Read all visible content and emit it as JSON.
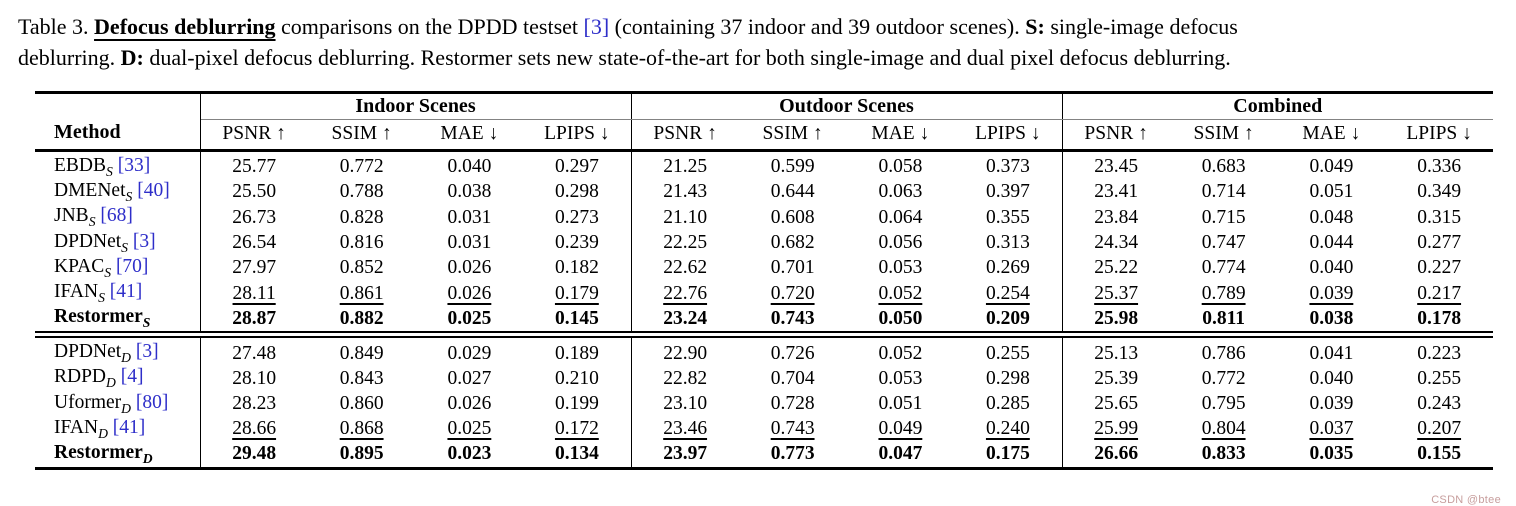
{
  "caption": {
    "part1": "Table 3. ",
    "defocus_label": "Defocus deblurring",
    "part2": " comparisons on the DPDD testset ",
    "cite": "[3]",
    "part3": " (containing 37 indoor and 39 outdoor scenes). ",
    "s_label": "S:",
    "part4": " single-image defocus",
    "part5": "deblurring. ",
    "d_label": "D:",
    "part6": " dual-pixel defocus deblurring. Restormer sets new state-of-the-art for both single-image and dual pixel defocus deblurring."
  },
  "table": {
    "method_header": "Method",
    "groups": [
      "Indoor Scenes",
      "Outdoor Scenes",
      "Combined"
    ],
    "metrics": [
      {
        "name": "PSNR",
        "arrow": "↑"
      },
      {
        "name": "SSIM",
        "arrow": "↑"
      },
      {
        "name": "MAE",
        "arrow": "↓"
      },
      {
        "name": "LPIPS",
        "arrow": "↓"
      }
    ],
    "sections": [
      {
        "suffix": "S",
        "rows": [
          {
            "method": "EBDB",
            "cite": "[33]",
            "style": "normal",
            "values": [
              "25.77",
              "0.772",
              "0.040",
              "0.297",
              "21.25",
              "0.599",
              "0.058",
              "0.373",
              "23.45",
              "0.683",
              "0.049",
              "0.336"
            ]
          },
          {
            "method": "DMENet",
            "cite": "[40]",
            "style": "normal",
            "values": [
              "25.50",
              "0.788",
              "0.038",
              "0.298",
              "21.43",
              "0.644",
              "0.063",
              "0.397",
              "23.41",
              "0.714",
              "0.051",
              "0.349"
            ]
          },
          {
            "method": "JNB",
            "cite": "[68]",
            "style": "normal",
            "values": [
              "26.73",
              "0.828",
              "0.031",
              "0.273",
              "21.10",
              "0.608",
              "0.064",
              "0.355",
              "23.84",
              "0.715",
              "0.048",
              "0.315"
            ]
          },
          {
            "method": "DPDNet",
            "cite": "[3]",
            "style": "normal",
            "values": [
              "26.54",
              "0.816",
              "0.031",
              "0.239",
              "22.25",
              "0.682",
              "0.056",
              "0.313",
              "24.34",
              "0.747",
              "0.044",
              "0.277"
            ]
          },
          {
            "method": "KPAC",
            "cite": "[70]",
            "style": "normal",
            "values": [
              "27.97",
              "0.852",
              "0.026",
              "0.182",
              "22.62",
              "0.701",
              "0.053",
              "0.269",
              "25.22",
              "0.774",
              "0.040",
              "0.227"
            ]
          },
          {
            "method": "IFAN",
            "cite": "[41]",
            "style": "underline",
            "values": [
              "28.11",
              "0.861",
              "0.026",
              "0.179",
              "22.76",
              "0.720",
              "0.052",
              "0.254",
              "25.37",
              "0.789",
              "0.039",
              "0.217"
            ]
          },
          {
            "method": "Restormer",
            "cite": "",
            "style": "bold",
            "values": [
              "28.87",
              "0.882",
              "0.025",
              "0.145",
              "23.24",
              "0.743",
              "0.050",
              "0.209",
              "25.98",
              "0.811",
              "0.038",
              "0.178"
            ]
          }
        ]
      },
      {
        "suffix": "D",
        "rows": [
          {
            "method": "DPDNet",
            "cite": "[3]",
            "style": "normal",
            "values": [
              "27.48",
              "0.849",
              "0.029",
              "0.189",
              "22.90",
              "0.726",
              "0.052",
              "0.255",
              "25.13",
              "0.786",
              "0.041",
              "0.223"
            ]
          },
          {
            "method": "RDPD",
            "cite": "[4]",
            "style": "normal",
            "values": [
              "28.10",
              "0.843",
              "0.027",
              "0.210",
              "22.82",
              "0.704",
              "0.053",
              "0.298",
              "25.39",
              "0.772",
              "0.040",
              "0.255"
            ]
          },
          {
            "method": "Uformer",
            "cite": "[80]",
            "style": "normal",
            "values": [
              "28.23",
              "0.860",
              "0.026",
              "0.199",
              "23.10",
              "0.728",
              "0.051",
              "0.285",
              "25.65",
              "0.795",
              "0.039",
              "0.243"
            ]
          },
          {
            "method": "IFAN",
            "cite": "[41]",
            "style": "underline",
            "values": [
              "28.66",
              "0.868",
              "0.025",
              "0.172",
              "23.46",
              "0.743",
              "0.049",
              "0.240",
              "25.99",
              "0.804",
              "0.037",
              "0.207"
            ]
          },
          {
            "method": "Restormer",
            "cite": "",
            "style": "bold",
            "values": [
              "29.48",
              "0.895",
              "0.023",
              "0.134",
              "23.97",
              "0.773",
              "0.047",
              "0.175",
              "26.66",
              "0.833",
              "0.035",
              "0.155"
            ]
          }
        ]
      }
    ]
  },
  "watermark": "CSDN @btee",
  "colors": {
    "cite": "#2e2ec9",
    "rule": "#838383",
    "watermark": "#c79e9d"
  }
}
